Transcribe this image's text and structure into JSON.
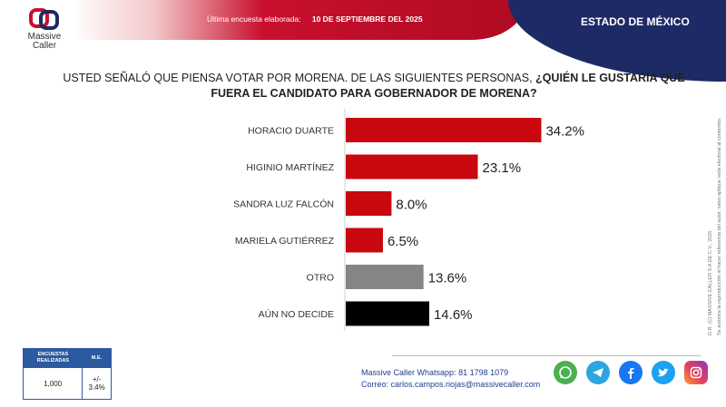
{
  "header": {
    "meta_label": "Última encuesta elaborada:",
    "meta_date": "10 DE SEPTIEMBRE DEL 2025",
    "state": "ESTADO DE MÉXICO"
  },
  "logo": {
    "line1": "Massive",
    "line2": "Caller"
  },
  "question": {
    "plain": "USTED SEÑALÓ QUE PIENSA VOTAR POR MORENA.  DE LAS SIGUIENTES PERSONAS, ",
    "bold": "¿QUIÉN LE GUSTARÍA QUE FUERA EL CANDIDATO PARA GOBERNADOR DE MORENA?"
  },
  "chart_data": {
    "type": "bar",
    "orientation": "horizontal",
    "categories": [
      "HORACIO DUARTE",
      "HIGINIO MARTÍNEZ",
      "SANDRA LUZ FALCÓN",
      "MARIELA GUTIÉRREZ",
      "OTRO",
      "AÚN NO DECIDE"
    ],
    "values": [
      34.2,
      23.1,
      8.0,
      6.5,
      13.6,
      14.6
    ],
    "labels": [
      "34.2%",
      "23.1%",
      "8.0%",
      "6.5%",
      "13.6%",
      "14.6%"
    ],
    "colors": [
      "#c8070f",
      "#c8070f",
      "#c8070f",
      "#c8070f",
      "#858585",
      "#000000"
    ],
    "xlim": [
      0,
      36
    ],
    "grid": false
  },
  "side_note": {
    "line1": "D.R. (C) MASSIVE CALLER S.A DE C.V., 2025",
    "line2": "Se autoriza la reproducción al hacer referencia del autor, salvo aplique veda electoral al contenido."
  },
  "stats": {
    "col1_header": "ENCUESTAS REALIZADAS",
    "col2_header": "M.E.",
    "col1_value": "1,000",
    "col2_value": "+/- 3.4%"
  },
  "contact": {
    "whatsapp_label": "Massive Caller Whatsapp:",
    "whatsapp_number": "81 1798 1079",
    "email_label": "Correo:",
    "email": "carlos.campos.riojas@massivecaller.com"
  },
  "social_icons": [
    "whatsapp-icon",
    "telegram-icon",
    "facebook-icon",
    "twitter-icon",
    "instagram-icon"
  ]
}
